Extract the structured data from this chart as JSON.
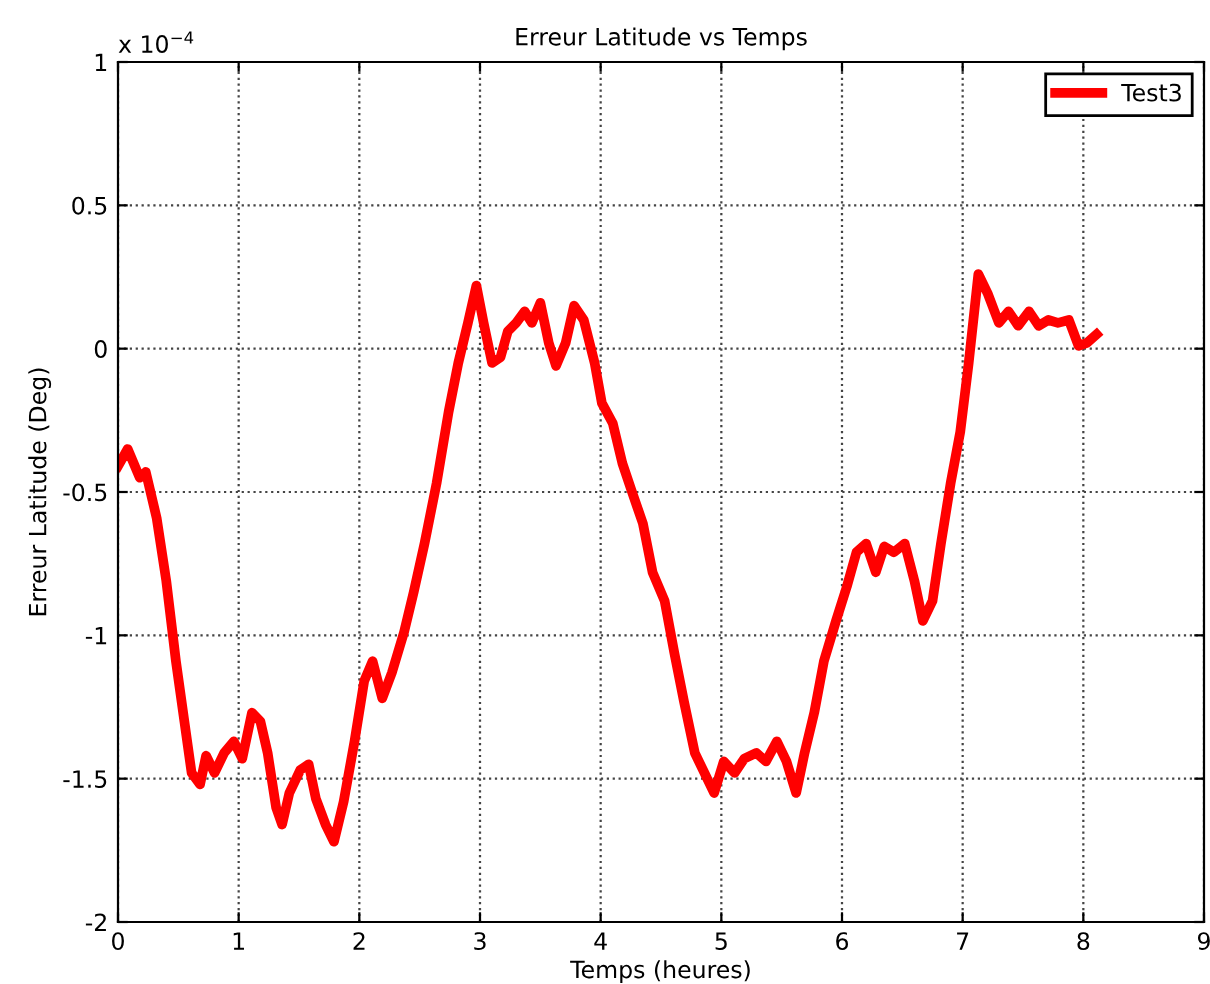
{
  "chart_data": {
    "type": "line",
    "title": "Erreur Latitude vs Temps",
    "xlabel": "Temps (heures)",
    "ylabel": "Erreur Latitude (Deg)",
    "annotations": [
      "x 10$^{−4}$"
    ],
    "xlim": [
      0,
      9
    ],
    "xticks": [
      0,
      1,
      2,
      3,
      4,
      5,
      6,
      7,
      8,
      9
    ],
    "ylim": [
      -2,
      1
    ],
    "yticks": [
      -2,
      -1.5,
      -1,
      -0.5,
      0,
      0.5,
      1
    ],
    "grid": true,
    "legend": "top right",
    "line_style": "solid",
    "marker": "none",
    "series": [
      {
        "name": "Test3",
        "color": "#ff0000",
        "x": [
          0,
          0.08,
          0.18,
          0.23,
          0.32,
          0.4,
          0.48,
          0.55,
          0.61,
          0.68,
          0.73,
          0.8,
          0.88,
          0.96,
          1.03,
          1.11,
          1.18,
          1.24,
          1.31,
          1.36,
          1.42,
          1.51,
          1.58,
          1.64,
          1.72,
          1.79,
          1.87,
          1.96,
          2.04,
          2.11,
          2.19,
          2.27,
          2.37,
          2.45,
          2.54,
          2.64,
          2.74,
          2.82,
          2.9,
          2.97,
          3.03,
          3.1,
          3.17,
          3.23,
          3.3,
          3.37,
          3.43,
          3.5,
          3.57,
          3.63,
          3.71,
          3.78,
          3.86,
          3.95,
          4.01,
          4.1,
          4.18,
          4.26,
          4.35,
          4.43,
          4.53,
          4.61,
          4.69,
          4.78,
          4.86,
          4.94,
          5.02,
          5.11,
          5.19,
          5.29,
          5.37,
          5.46,
          5.54,
          5.62,
          5.69,
          5.77,
          5.85,
          5.95,
          6.04,
          6.12,
          6.2,
          6.28,
          6.35,
          6.43,
          6.52,
          6.6,
          6.67,
          6.75,
          6.82,
          6.9,
          6.98,
          7.05,
          7.13,
          7.21,
          7.3,
          7.38,
          7.46,
          7.55,
          7.63,
          7.71,
          7.79,
          7.88,
          7.96,
          8.03,
          8.11
        ],
        "values": [
          -0.41,
          -0.35,
          -0.45,
          -0.43,
          -0.59,
          -0.81,
          -1.09,
          -1.3,
          -1.48,
          -1.52,
          -1.42,
          -1.48,
          -1.41,
          -1.37,
          -1.43,
          -1.27,
          -1.3,
          -1.41,
          -1.6,
          -1.66,
          -1.55,
          -1.47,
          -1.45,
          -1.57,
          -1.66,
          -1.72,
          -1.58,
          -1.37,
          -1.16,
          -1.09,
          -1.22,
          -1.13,
          -0.99,
          -0.85,
          -0.68,
          -0.47,
          -0.22,
          -0.05,
          0.09,
          0.22,
          0.09,
          -0.05,
          -0.03,
          0.06,
          0.09,
          0.13,
          0.09,
          0.16,
          0.02,
          -0.06,
          0.02,
          0.15,
          0.1,
          -0.05,
          -0.19,
          -0.26,
          -0.4,
          -0.5,
          -0.61,
          -0.78,
          -0.88,
          -1.06,
          -1.23,
          -1.41,
          -1.48,
          -1.55,
          -1.44,
          -1.48,
          -1.43,
          -1.41,
          -1.44,
          -1.37,
          -1.44,
          -1.55,
          -1.41,
          -1.27,
          -1.09,
          -0.95,
          -0.83,
          -0.71,
          -0.68,
          -0.78,
          -0.69,
          -0.71,
          -0.68,
          -0.81,
          -0.95,
          -0.88,
          -0.68,
          -0.47,
          -0.29,
          -0.05,
          0.26,
          0.19,
          0.09,
          0.13,
          0.08,
          0.13,
          0.08,
          0.1,
          0.09,
          0.1,
          0.01,
          0.02,
          0.05
        ]
      }
    ]
  }
}
